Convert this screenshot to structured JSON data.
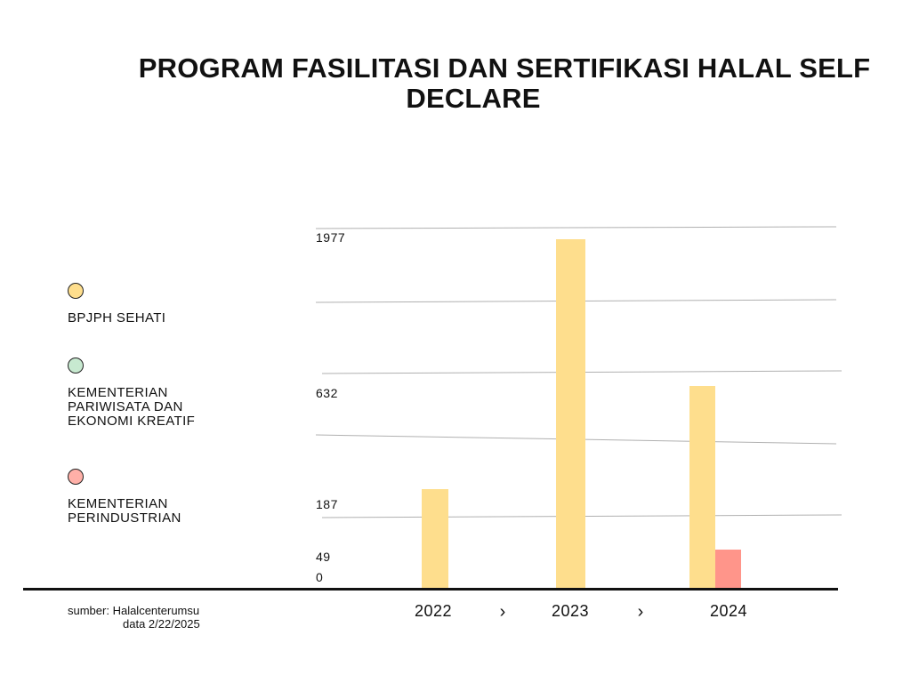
{
  "title_lines": [
    "PROGRAM FASILITASI DAN SERTIFIKASI HALAL SELF",
    "DECLARE"
  ],
  "legend": [
    {
      "label": "BPJPH SEHATI",
      "color": "#FEDE8D"
    },
    {
      "label": "KEMENTERIAN PARIWISATA DAN EKONOMI KREATIF",
      "color": "#C7E9D0"
    },
    {
      "label": "KEMENTERIAN PERINDUSTRIAN",
      "color": "#FFB0A8"
    }
  ],
  "source": {
    "line1": "sumber: Halalcenterumsu",
    "line2": "data 2/22/2025"
  },
  "chart_data": {
    "type": "bar",
    "title": "PROGRAM FASILITASI DAN SERTIFIKASI HALAL SELF DECLARE",
    "categories": [
      "2022",
      "2023",
      "2024"
    ],
    "category_separator": "›",
    "series": [
      {
        "name": "BPJPH SEHATI",
        "color": "#FEDE8D",
        "values": [
          187,
          1977,
          632
        ]
      },
      {
        "name": "KEMENTERIAN PARIWISATA DAN EKONOMI KREATIF",
        "color": "#C7E9D0",
        "values": [
          0,
          0,
          0
        ]
      },
      {
        "name": "KEMENTERIAN PERINDUSTRIAN",
        "color": "#FF958A",
        "values": [
          0,
          0,
          49
        ]
      }
    ],
    "y_tick_labels": [
      "0",
      "49",
      "187",
      "632",
      "1977"
    ],
    "grid": true,
    "xlabel": "",
    "ylabel": ""
  }
}
